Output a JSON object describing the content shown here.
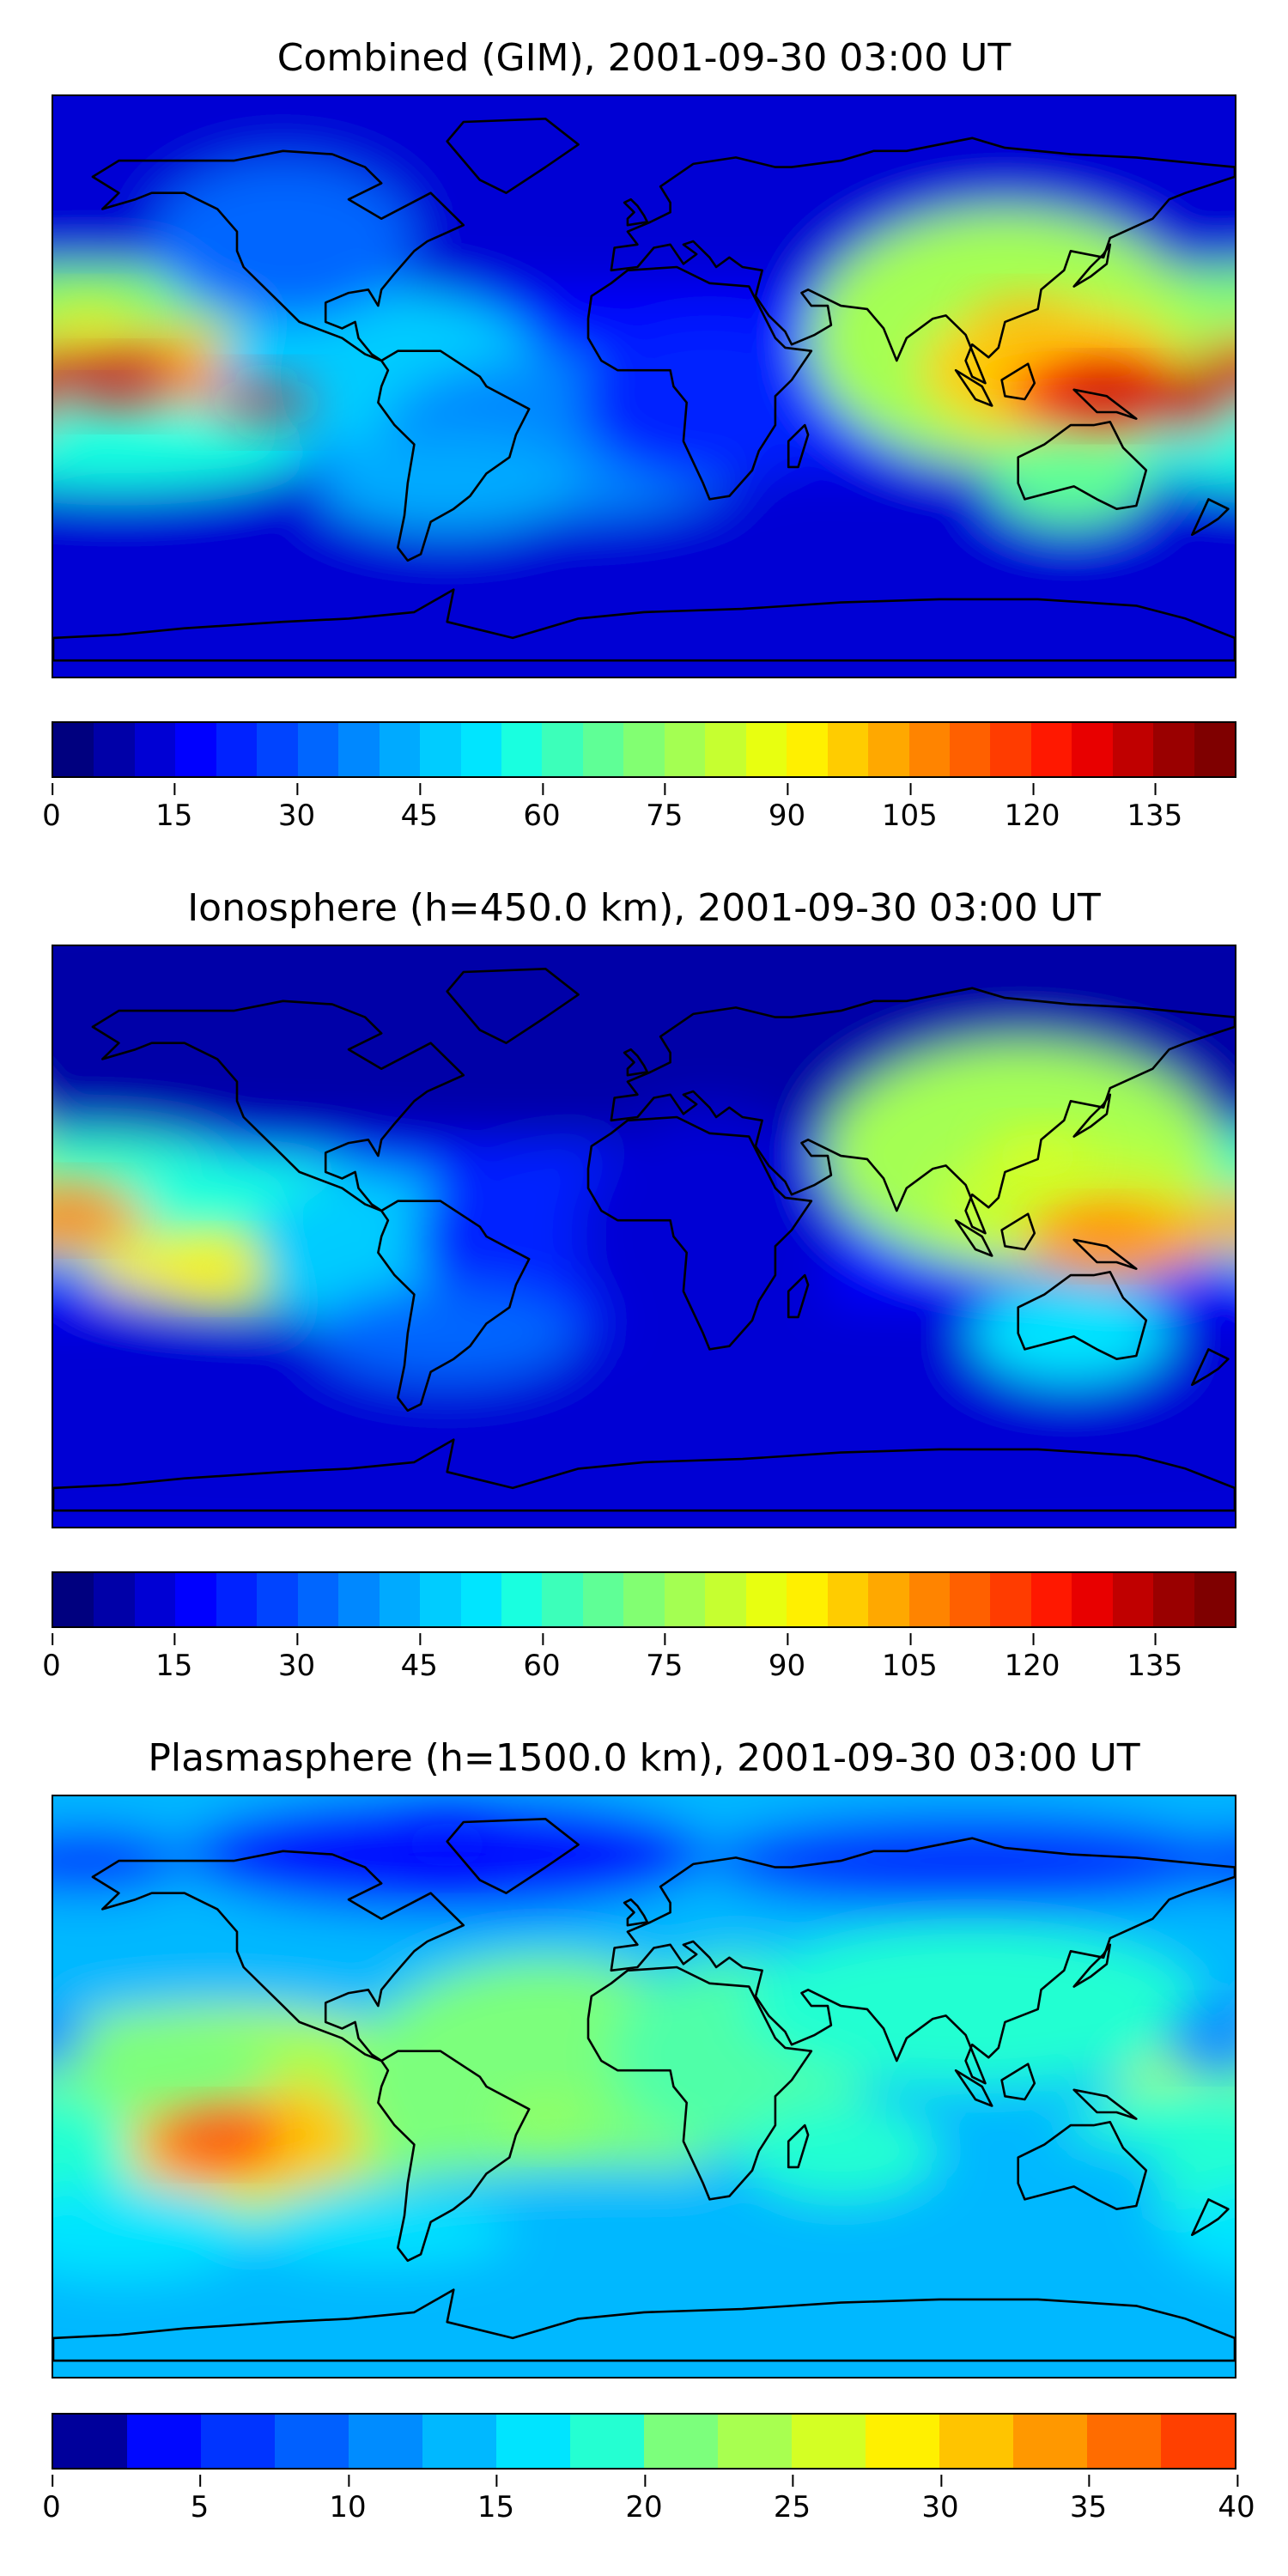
{
  "panels": [
    {
      "title": "Combined (GIM), 2001-09-30 03:00 UT",
      "variable": "combined TEC",
      "colorbar": {
        "min": 0,
        "max": 145,
        "step": 5,
        "ticks": [
          "0",
          "15",
          "30",
          "45",
          "60",
          "75",
          "90",
          "105",
          "120",
          "135"
        ],
        "tick_values": [
          0,
          15,
          30,
          45,
          60,
          75,
          90,
          105,
          120,
          135
        ]
      },
      "features": [
        {
          "name": "east-pacific-peak",
          "lon": -160,
          "lat": 0,
          "value": 130
        },
        {
          "name": "pacific-peak-2",
          "lon": -115,
          "lat": -5,
          "value": 120
        },
        {
          "name": "indonesia-peak",
          "lon": 140,
          "lat": -3,
          "value": 135
        },
        {
          "name": "asia-high",
          "lon": 115,
          "lat": 20,
          "value": 100
        },
        {
          "name": "north-pacific-band",
          "lon": -170,
          "lat": 20,
          "value": 90
        }
      ]
    },
    {
      "title": "Ionosphere  (h=450.0 km), 2001-09-30 03:00 UT",
      "variable": "ionospheric TEC",
      "colorbar": {
        "min": 0,
        "max": 145,
        "step": 5,
        "ticks": [
          "0",
          "15",
          "30",
          "45",
          "60",
          "75",
          "90",
          "105",
          "120",
          "135"
        ],
        "tick_values": [
          0,
          15,
          30,
          45,
          60,
          75,
          90,
          105,
          120,
          135
        ]
      },
      "features": [
        {
          "name": "central-pacific-peak",
          "lon": -175,
          "lat": 8,
          "value": 110
        },
        {
          "name": "indonesia-peak",
          "lon": 140,
          "lat": 0,
          "value": 105
        },
        {
          "name": "asia-high",
          "lon": 120,
          "lat": 25,
          "value": 85
        },
        {
          "name": "south-pacific-band",
          "lon": -130,
          "lat": -10,
          "value": 90
        }
      ]
    },
    {
      "title": "Plasmasphere (h=1500.0 km), 2001-09-30 03:00 UT",
      "variable": "plasmaspheric TEC",
      "colorbar": {
        "min": 0,
        "max": 40,
        "step": 2.5,
        "ticks": [
          "0",
          "5",
          "10",
          "15",
          "20",
          "25",
          "30",
          "35",
          "40"
        ],
        "tick_values": [
          0,
          5,
          10,
          15,
          20,
          25,
          30,
          35,
          40
        ]
      },
      "features": [
        {
          "name": "south-pacific-peak",
          "lon": -130,
          "lat": -15,
          "value": 38
        },
        {
          "name": "atlantic-high",
          "lon": -30,
          "lat": -10,
          "value": 25
        },
        {
          "name": "arctic-low",
          "lon": -60,
          "lat": 75,
          "value": 3
        },
        {
          "name": "pacific-low",
          "lon": 175,
          "lat": 15,
          "value": 10
        }
      ]
    }
  ],
  "colormap": [
    "#00007f",
    "#0000a8",
    "#0000d4",
    "#0000ff",
    "#0022ff",
    "#0044ff",
    "#0066ff",
    "#0088ff",
    "#00aaff",
    "#00ccff",
    "#00e5ff",
    "#19ffe0",
    "#3cffba",
    "#5fff96",
    "#82ff72",
    "#a4ff52",
    "#c6ff30",
    "#e8ff10",
    "#fff000",
    "#ffcc00",
    "#ffa800",
    "#ff8400",
    "#ff6000",
    "#ff3c00",
    "#ff1800",
    "#e80000",
    "#c00000",
    "#9a0000",
    "#7f0000"
  ],
  "colormap_small": [
    "#00009b",
    "#0008ff",
    "#0034ff",
    "#0060ff",
    "#008cff",
    "#00b8ff",
    "#00e4ff",
    "#24ffd2",
    "#50ffa8",
    "#7cff7c",
    "#a8ff50",
    "#d4ff24",
    "#fff000",
    "#ffc400",
    "#ff9800",
    "#ff6c00",
    "#ff4000"
  ]
}
